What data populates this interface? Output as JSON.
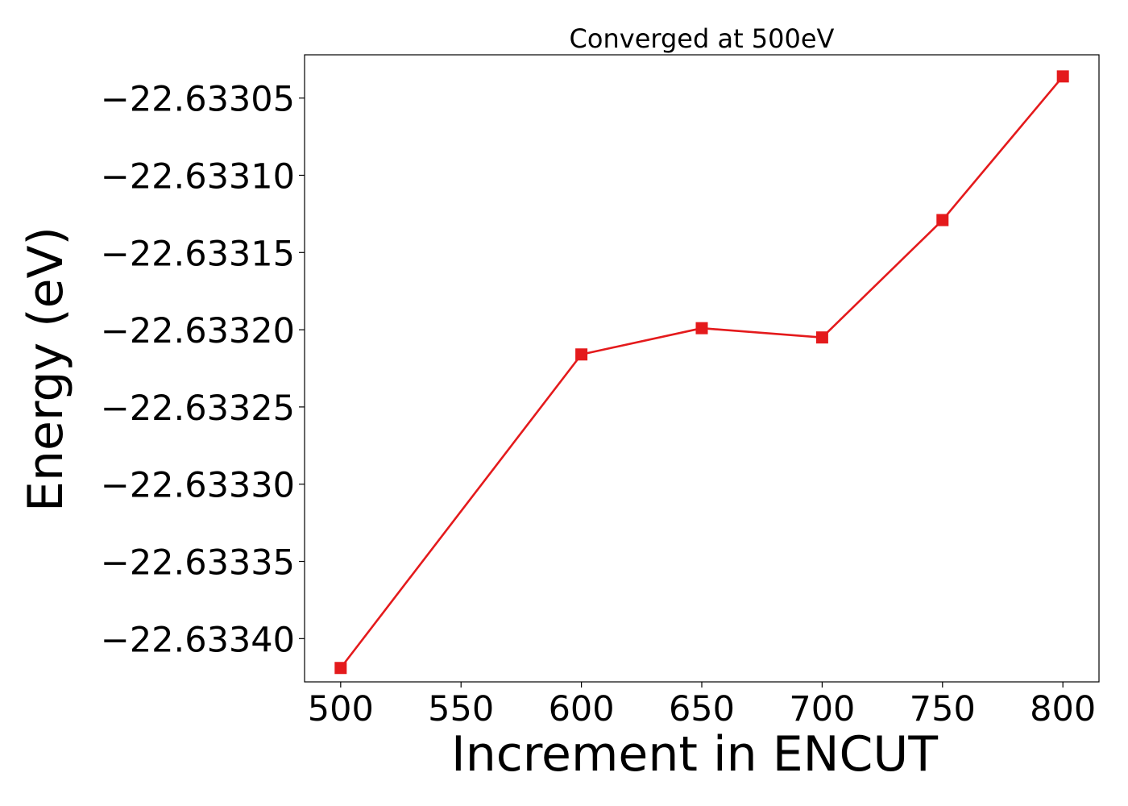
{
  "chart_data": {
    "type": "line",
    "title": "Converged at 500eV",
    "xlabel": "Increment in ENCUT",
    "ylabel": "Energy (eV)",
    "x": [
      500,
      600,
      650,
      700,
      750,
      800
    ],
    "series": [
      {
        "values": [
          -22.633419,
          -22.633216,
          -22.633199,
          -22.633205,
          -22.633129,
          -22.633036
        ],
        "color": "#e41a1c",
        "marker": "square"
      }
    ],
    "xticks": [
      500,
      550,
      600,
      650,
      700,
      750,
      800
    ],
    "xtick_labels": [
      "500",
      "550",
      "600",
      "650",
      "700",
      "750",
      "800"
    ],
    "yticks": [
      -22.6334,
      -22.63335,
      -22.6333,
      -22.63325,
      -22.6332,
      -22.63315,
      -22.6331,
      -22.63305
    ],
    "ytick_labels": [
      "−22.63340",
      "−22.63335",
      "−22.63330",
      "−22.63325",
      "−22.63320",
      "−22.63315",
      "−22.63310",
      "−22.63305"
    ],
    "xlim": [
      485,
      815
    ],
    "ylim": [
      -22.633428,
      -22.633022
    ],
    "grid": false,
    "legend": "none"
  }
}
